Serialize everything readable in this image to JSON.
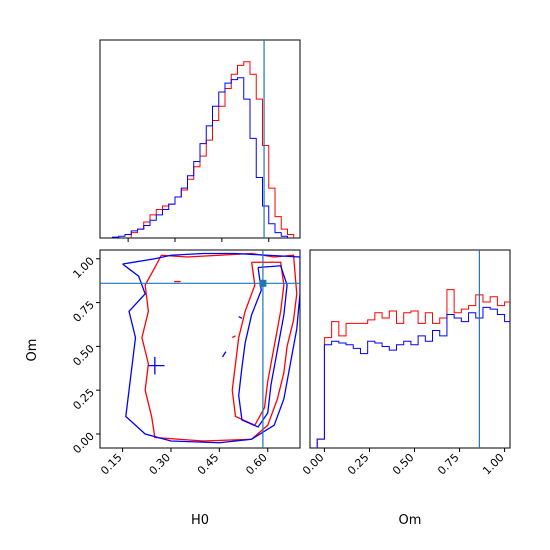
{
  "colors": {
    "red": "#ff0000",
    "blue": "#0000ff",
    "truth": "#1f77b4",
    "axes": "#000000"
  },
  "chart_data": [
    {
      "type": "histogram",
      "panel": "H0 marginal",
      "x_range": [
        0.06,
        0.7
      ],
      "truth": 0.585,
      "yticks_visible": false,
      "bin_width": 0.02,
      "red": {
        "start": 0.16,
        "values": [
          0.03,
          0.05,
          0.09,
          0.13,
          0.16,
          0.18,
          0.19,
          0.23,
          0.27,
          0.33,
          0.4,
          0.46,
          0.55,
          0.66,
          0.74,
          0.84,
          0.92,
          0.97,
          0.99,
          0.92,
          0.78,
          0.52,
          0.28,
          0.12,
          0.05,
          0.02
        ]
      },
      "blue": {
        "start": 0.1,
        "values": [
          0.005,
          0.01,
          0.02,
          0.04,
          0.05,
          0.07,
          0.1,
          0.13,
          0.16,
          0.19,
          0.23,
          0.28,
          0.35,
          0.43,
          0.53,
          0.63,
          0.74,
          0.82,
          0.87,
          0.89,
          0.9,
          0.78,
          0.56,
          0.34,
          0.18,
          0.08,
          0.03,
          0.01
        ]
      }
    },
    {
      "type": "contour",
      "panel": "H0 vs Om",
      "xlabel": "H0",
      "ylabel": "Om",
      "xlim": [
        0.08,
        0.7
      ],
      "ylim": [
        -0.08,
        1.05
      ],
      "xticks": [
        "0.15",
        "0.30",
        "0.45",
        "0.60"
      ],
      "yticks": [
        "0.00",
        "0.25",
        "0.50",
        "0.75",
        "1.00"
      ],
      "truth": {
        "x": 0.585,
        "y": 0.86
      },
      "red_contours": [
        [
          [
            0.27,
            1.02
          ],
          [
            0.25,
            0.95
          ],
          [
            0.22,
            0.85
          ],
          [
            0.23,
            0.7
          ],
          [
            0.21,
            0.55
          ],
          [
            0.23,
            0.4
          ],
          [
            0.22,
            0.25
          ],
          [
            0.24,
            0.1
          ],
          [
            0.25,
            -0.02
          ],
          [
            0.4,
            -0.04
          ],
          [
            0.55,
            -0.03
          ],
          [
            0.6,
            0.05
          ],
          [
            0.63,
            0.2
          ],
          [
            0.65,
            0.35
          ],
          [
            0.66,
            0.5
          ],
          [
            0.68,
            0.65
          ],
          [
            0.69,
            0.8
          ],
          [
            0.68,
            1.02
          ],
          [
            0.62,
            1.01
          ],
          [
            0.55,
            1.03
          ],
          [
            0.45,
            1.02
          ],
          [
            0.35,
            1.01
          ],
          [
            0.27,
            1.02
          ]
        ],
        [
          [
            0.55,
            0.98
          ],
          [
            0.56,
            0.85
          ],
          [
            0.53,
            0.7
          ],
          [
            0.51,
            0.55
          ],
          [
            0.5,
            0.4
          ],
          [
            0.49,
            0.25
          ],
          [
            0.5,
            0.1
          ],
          [
            0.56,
            0.05
          ],
          [
            0.59,
            0.15
          ],
          [
            0.6,
            0.3
          ],
          [
            0.62,
            0.5
          ],
          [
            0.64,
            0.7
          ],
          [
            0.65,
            0.85
          ],
          [
            0.64,
            0.98
          ],
          [
            0.55,
            0.98
          ]
        ],
        [
          [
            0.31,
            0.87
          ],
          [
            0.33,
            0.87
          ]
        ],
        [
          [
            0.49,
            0.55
          ],
          [
            0.5,
            0.56
          ]
        ]
      ],
      "blue_contours": [
        [
          [
            0.15,
            0.97
          ],
          [
            0.2,
            0.9
          ],
          [
            0.22,
            0.8
          ],
          [
            0.17,
            0.7
          ],
          [
            0.19,
            0.55
          ],
          [
            0.18,
            0.4
          ],
          [
            0.17,
            0.25
          ],
          [
            0.16,
            0.1
          ],
          [
            0.22,
            0.0
          ],
          [
            0.3,
            -0.04
          ],
          [
            0.45,
            -0.05
          ],
          [
            0.55,
            -0.03
          ],
          [
            0.62,
            0.05
          ],
          [
            0.65,
            0.2
          ],
          [
            0.67,
            0.4
          ],
          [
            0.69,
            0.6
          ],
          [
            0.7,
            0.8
          ],
          [
            0.7,
            1.01
          ],
          [
            0.6,
            1.02
          ],
          [
            0.5,
            1.03
          ],
          [
            0.4,
            1.03
          ],
          [
            0.3,
            1.02
          ],
          [
            0.25,
            1.0
          ],
          [
            0.15,
            0.97
          ]
        ],
        [
          [
            0.57,
            0.95
          ],
          [
            0.58,
            0.82
          ],
          [
            0.55,
            0.68
          ],
          [
            0.53,
            0.52
          ],
          [
            0.52,
            0.38
          ],
          [
            0.51,
            0.22
          ],
          [
            0.52,
            0.08
          ],
          [
            0.57,
            0.04
          ],
          [
            0.6,
            0.12
          ],
          [
            0.61,
            0.28
          ],
          [
            0.63,
            0.48
          ],
          [
            0.65,
            0.68
          ],
          [
            0.66,
            0.85
          ],
          [
            0.64,
            0.96
          ],
          [
            0.57,
            0.95
          ]
        ],
        [
          [
            0.25,
            0.44
          ],
          [
            0.25,
            0.34
          ]
        ],
        [
          [
            0.23,
            0.39
          ],
          [
            0.28,
            0.39
          ]
        ],
        [
          [
            0.47,
            0.47
          ],
          [
            0.46,
            0.44
          ]
        ],
        [
          [
            0.51,
            0.67
          ],
          [
            0.52,
            0.66
          ]
        ]
      ]
    },
    {
      "type": "histogram",
      "panel": "Om marginal",
      "xlabel": "Om",
      "x_range": [
        -0.08,
        1.03
      ],
      "xticks": [
        "0.00",
        "0.25",
        "0.50",
        "0.75",
        "1.00"
      ],
      "truth": 0.86,
      "yticks_visible": false,
      "bin_width": 0.04,
      "red": {
        "start": -0.04,
        "values": [
          0.05,
          0.62,
          0.71,
          0.63,
          0.7,
          0.7,
          0.7,
          0.72,
          0.76,
          0.73,
          0.77,
          0.7,
          0.76,
          0.77,
          0.7,
          0.76,
          0.7,
          0.73,
          0.89,
          0.76,
          0.78,
          0.8,
          0.86,
          0.82,
          0.85,
          0.8,
          0.82,
          0.05
        ]
      },
      "blue": {
        "start": -0.04,
        "values": [
          0.05,
          0.58,
          0.6,
          0.59,
          0.58,
          0.56,
          0.53,
          0.6,
          0.59,
          0.57,
          0.55,
          0.58,
          0.6,
          0.58,
          0.63,
          0.6,
          0.66,
          0.63,
          0.75,
          0.73,
          0.71,
          0.76,
          0.73,
          0.79,
          0.78,
          0.75,
          0.71,
          0.13
        ]
      }
    }
  ]
}
